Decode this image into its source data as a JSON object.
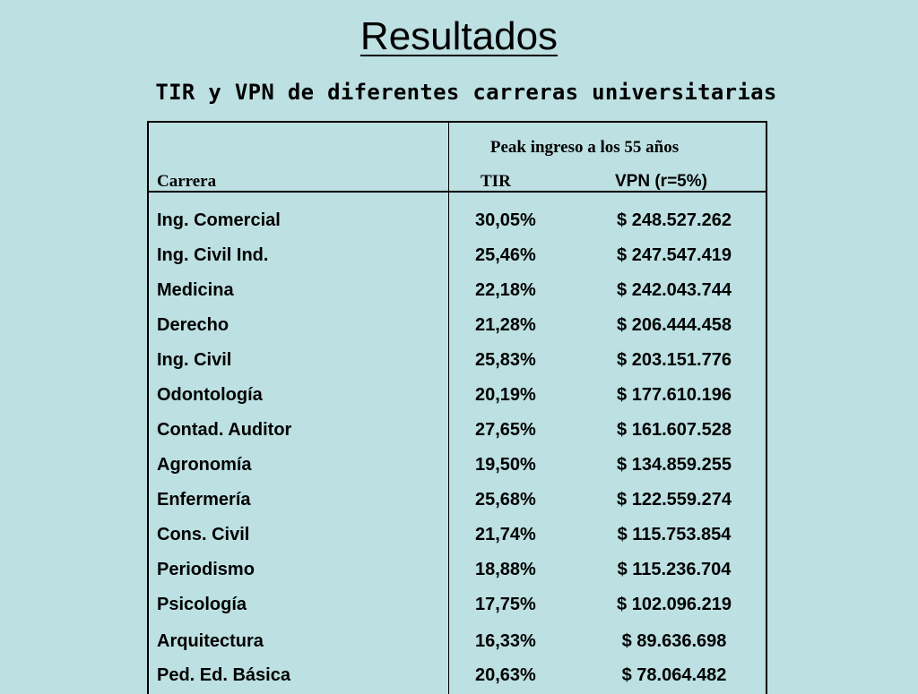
{
  "slide": {
    "title": "Resultados",
    "subtitle": "TIR y VPN de diferentes carreras universitarias"
  },
  "table": {
    "group_header": "Peak ingreso a los 55 años",
    "headers": {
      "career": "Carrera",
      "tir": "TIR",
      "vpn": "VPN (r=5%)"
    },
    "rows": [
      {
        "career": "Ing. Comercial",
        "tir": "30,05%",
        "vpn": "$ 248.527.262"
      },
      {
        "career": "Ing. Civil Ind.",
        "tir": "25,46%",
        "vpn": "$ 247.547.419"
      },
      {
        "career": "Medicina",
        "tir": "22,18%",
        "vpn": "$ 242.043.744"
      },
      {
        "career": "Derecho",
        "tir": "21,28%",
        "vpn": "$ 206.444.458"
      },
      {
        "career": "Ing. Civil",
        "tir": "25,83%",
        "vpn": "$ 203.151.776"
      },
      {
        "career": "Odontología",
        "tir": "20,19%",
        "vpn": "$ 177.610.196"
      },
      {
        "career": "Contad. Auditor",
        "tir": "27,65%",
        "vpn": "$ 161.607.528"
      },
      {
        "career": "Agronomía",
        "tir": "19,50%",
        "vpn": "$ 134.859.255"
      },
      {
        "career": "Enfermería",
        "tir": "25,68%",
        "vpn": "$ 122.559.274"
      },
      {
        "career": "Cons. Civil",
        "tir": "21,74%",
        "vpn": "$ 115.753.854"
      },
      {
        "career": "Periodismo",
        "tir": "18,88%",
        "vpn": "$ 115.236.704"
      },
      {
        "career": "Psicología",
        "tir": "17,75%",
        "vpn": "$ 102.096.219"
      },
      {
        "career": "Arquitectura",
        "tir": "16,33%",
        "vpn": "$ 89.636.698"
      },
      {
        "career": "Ped. Ed. Básica",
        "tir": "20,63%",
        "vpn": "$ 78.064.482"
      }
    ]
  },
  "colors": {
    "background": "#bde0e2",
    "text": "#000000"
  }
}
